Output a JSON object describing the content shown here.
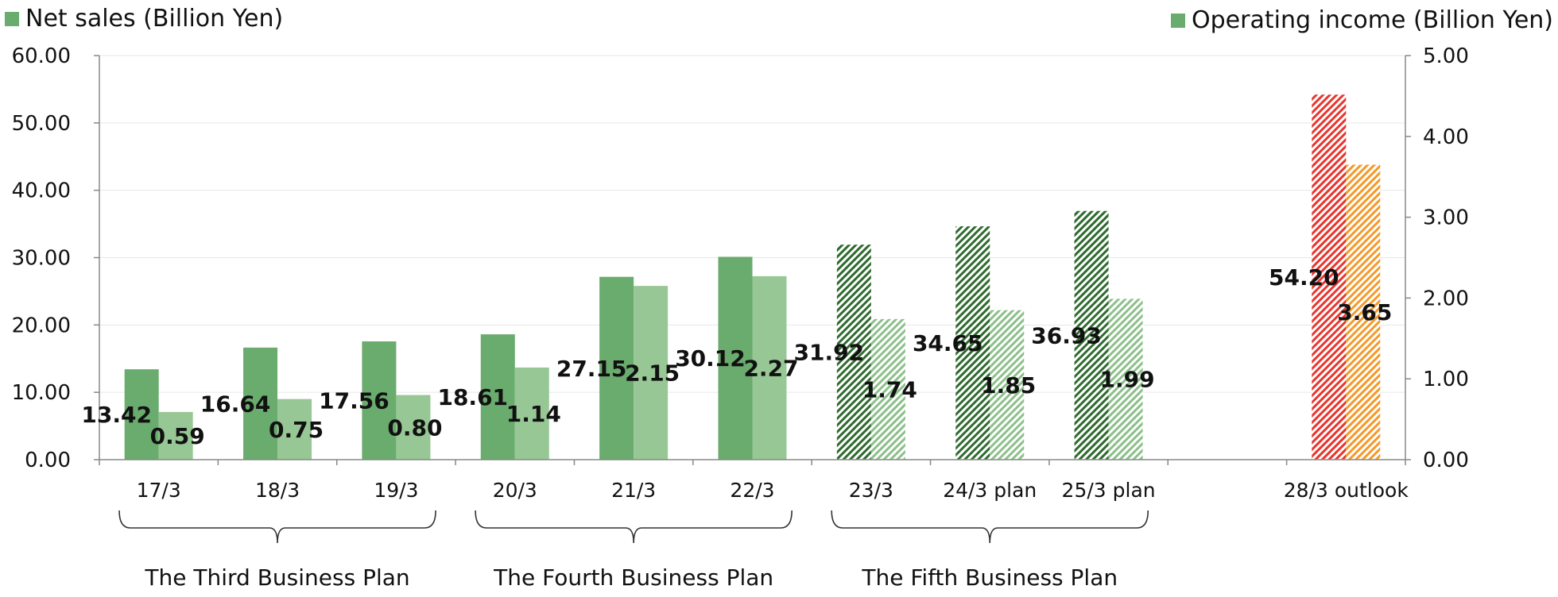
{
  "chart_data": {
    "type": "bar",
    "categories": [
      "17/3",
      "18/3",
      "19/3",
      "20/3",
      "21/3",
      "22/3",
      "23/3",
      "24/3 plan",
      "25/3 plan",
      "",
      "28/3 outlook"
    ],
    "series": [
      {
        "name": "Net sales (Billion Yen)",
        "axis": "left",
        "values": [
          13.42,
          16.64,
          17.56,
          18.61,
          27.15,
          30.12,
          31.92,
          34.65,
          36.93,
          null,
          54.2
        ],
        "labels": [
          "13.42",
          "16.64",
          "17.56",
          "18.61",
          "27.15",
          "30.12",
          "31.92",
          "34.65",
          "36.93",
          "",
          "54.20"
        ]
      },
      {
        "name": "Operating income (Billion Yen)",
        "axis": "right",
        "values": [
          0.59,
          0.75,
          0.8,
          1.14,
          2.15,
          2.27,
          1.74,
          1.85,
          1.99,
          null,
          3.65
        ],
        "labels": [
          "0.59",
          "0.75",
          "0.80",
          "1.14",
          "2.15",
          "2.27",
          "1.74",
          "1.85",
          "1.99",
          "",
          "3.65"
        ]
      }
    ],
    "styles": [
      "solid",
      "solid",
      "solid",
      "solid",
      "solid",
      "solid",
      "hatched",
      "hatched",
      "hatched",
      "none",
      "hatched-red-orange"
    ],
    "colors": {
      "sales": "#6aab6e",
      "income": "#97c794",
      "sales_hatch": "#2f6b2f",
      "income_hatch": "#8cc08a",
      "outlook_sales": "#e8352e",
      "outlook_income": "#f39a2b",
      "axis": "#888888"
    },
    "y_left": {
      "min": 0,
      "max": 60,
      "ticks": [
        "0.00",
        "10.00",
        "20.00",
        "30.00",
        "40.00",
        "50.00",
        "60.00"
      ]
    },
    "y_right": {
      "min": 0,
      "max": 5,
      "ticks": [
        "0.00",
        "1.00",
        "2.00",
        "3.00",
        "4.00",
        "5.00"
      ]
    },
    "groups": [
      {
        "label": "The Third Business Plan",
        "span": [
          0,
          2
        ]
      },
      {
        "label": "The Fourth Business Plan",
        "span": [
          3,
          5
        ]
      },
      {
        "label": "The Fifth Business Plan",
        "span": [
          6,
          8
        ]
      }
    ],
    "legend": {
      "left": {
        "label": "Net sales (Billion Yen)",
        "position": "top-left"
      },
      "right": {
        "label": "Operating income (Billion Yen)",
        "position": "top-right"
      }
    },
    "grid": true
  }
}
